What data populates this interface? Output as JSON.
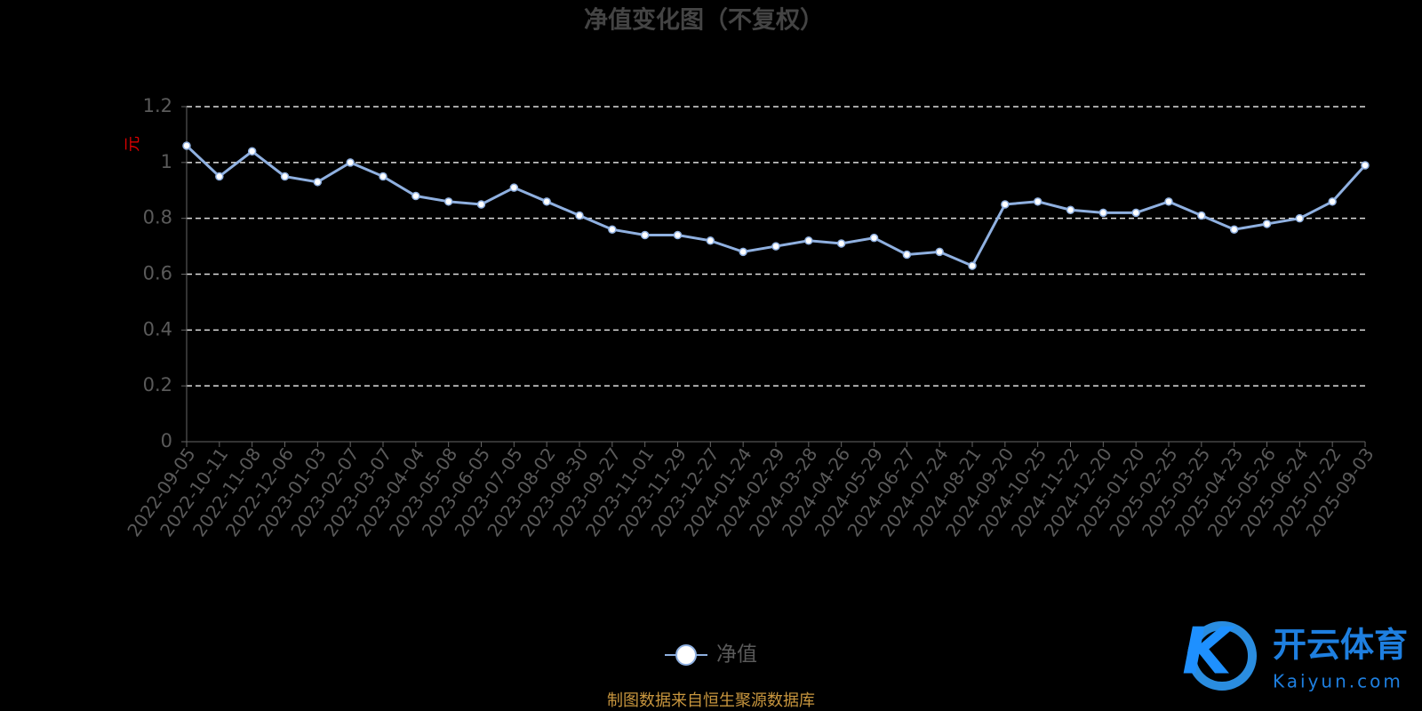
{
  "chart_data": {
    "type": "line",
    "title": "净值变化图（不复权）",
    "y_label": "元",
    "source": "制图数据来自恒生聚源数据库",
    "watermark": {
      "name": "开云体育",
      "site": "Kaiyun.com"
    },
    "categories": [
      "2022-09-05",
      "2022-10-11",
      "2022-11-08",
      "2022-12-06",
      "2023-01-03",
      "2023-02-07",
      "2023-03-07",
      "2023-04-04",
      "2023-05-08",
      "2023-06-05",
      "2023-07-05",
      "2023-08-02",
      "2023-08-30",
      "2023-09-27",
      "2023-11-01",
      "2023-11-29",
      "2023-12-27",
      "2024-01-24",
      "2024-02-29",
      "2024-03-28",
      "2024-04-26",
      "2024-05-29",
      "2024-06-27",
      "2024-07-24",
      "2024-08-21",
      "2024-09-20",
      "2024-10-25",
      "2024-11-22",
      "2024-12-20",
      "2025-01-20",
      "2025-02-25",
      "2025-03-25",
      "2025-04-23",
      "2025-05-26",
      "2025-06-24",
      "2025-07-22",
      "2025-09-03"
    ],
    "series": [
      {
        "name": "净值",
        "color": "#8fb0e0",
        "values": [
          1.06,
          0.95,
          1.04,
          0.95,
          0.93,
          1.0,
          0.95,
          0.88,
          0.86,
          0.85,
          0.91,
          0.86,
          0.81,
          0.76,
          0.74,
          0.74,
          0.72,
          0.68,
          0.7,
          0.72,
          0.71,
          0.73,
          0.67,
          0.68,
          0.63,
          0.85,
          0.86,
          0.83,
          0.82,
          0.82,
          0.86,
          0.81,
          0.76,
          0.78,
          0.8,
          0.86,
          0.99
        ]
      }
    ],
    "ylim": [
      0,
      1.2
    ],
    "yticks": [
      0,
      0.2,
      0.4,
      0.6,
      0.8,
      1,
      1.2
    ],
    "grid": true
  }
}
